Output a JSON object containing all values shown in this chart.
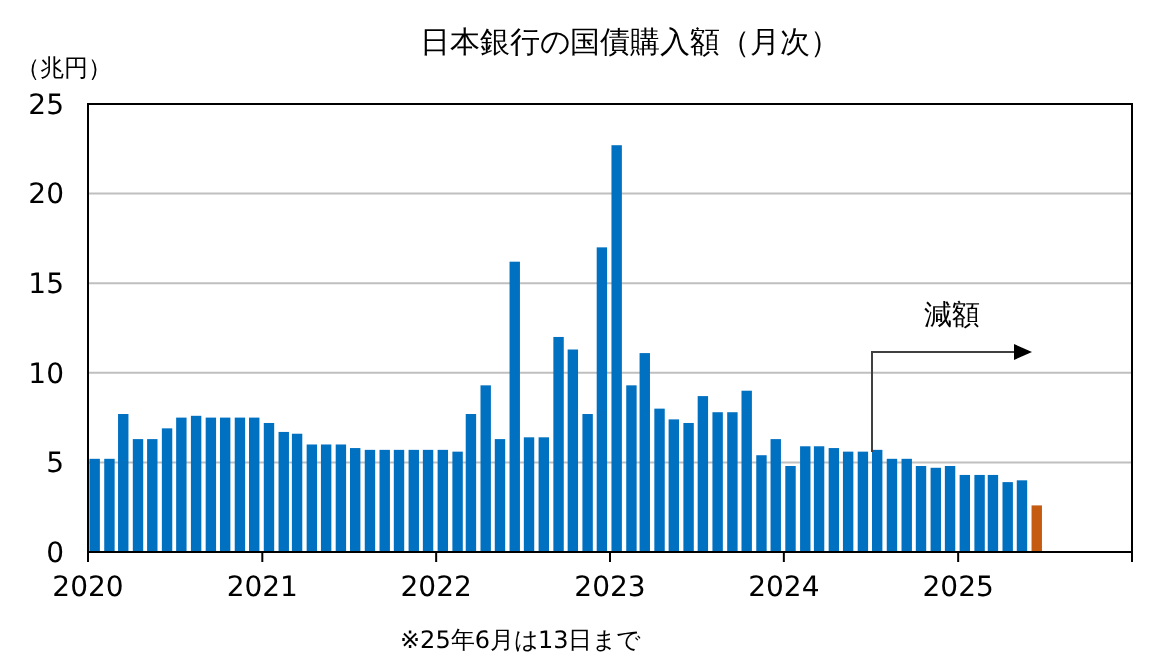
{
  "chart_data": {
    "type": "bar",
    "title": "日本銀行の国債購入額（月次）",
    "ylabel": "（兆円）",
    "x": [
      "2020-01-15",
      "2020-02-15",
      "2020-03-15",
      "2020-04-15",
      "2020-05-15",
      "2020-06-15",
      "2020-07-15",
      "2020-08-15",
      "2020-09-15",
      "2020-10-15",
      "2020-11-15",
      "2020-12-15",
      "2021-01-15",
      "2021-02-15",
      "2021-03-15",
      "2021-04-15",
      "2021-05-15",
      "2021-06-15",
      "2021-07-15",
      "2021-08-15",
      "2021-09-15",
      "2021-10-15",
      "2021-11-15",
      "2021-12-15",
      "2022-01-15",
      "2022-02-15",
      "2022-03-15",
      "2022-04-15",
      "2022-05-15",
      "2022-06-15",
      "2022-07-15",
      "2022-08-15",
      "2022-09-15",
      "2022-10-15",
      "2022-11-15",
      "2022-12-15",
      "2023-01-15",
      "2023-02-15",
      "2023-03-15",
      "2023-04-15",
      "2023-05-15",
      "2023-06-15",
      "2023-07-15",
      "2023-08-15",
      "2023-09-15",
      "2023-10-15",
      "2023-11-15",
      "2023-12-15",
      "2024-01-15",
      "2024-02-15",
      "2024-03-15",
      "2024-04-15",
      "2024-05-15",
      "2024-06-15",
      "2024-07-15",
      "2024-08-15",
      "2024-09-15",
      "2024-10-15",
      "2024-11-15",
      "2024-12-15",
      "2025-01-15",
      "2025-02-15",
      "2025-03-15",
      "2025-04-15",
      "2025-05-15",
      "2025-06-15"
    ],
    "values": [
      5.2,
      5.2,
      7.7,
      6.3,
      6.3,
      6.9,
      7.5,
      7.6,
      7.5,
      7.5,
      7.5,
      7.5,
      7.2,
      6.7,
      6.6,
      6.0,
      6.0,
      6.0,
      5.8,
      5.7,
      5.7,
      5.7,
      5.7,
      5.7,
      5.7,
      5.6,
      7.7,
      9.3,
      6.3,
      16.2,
      6.4,
      6.4,
      12.0,
      11.3,
      7.7,
      17.0,
      22.7,
      9.3,
      11.1,
      8.0,
      7.4,
      7.2,
      8.7,
      7.8,
      7.8,
      9.0,
      5.4,
      6.3,
      4.8,
      5.9,
      5.9,
      5.8,
      5.6,
      5.6,
      5.7,
      5.2,
      5.2,
      4.8,
      4.7,
      4.8,
      4.3,
      4.3,
      4.3,
      3.9,
      4.0,
      2.6
    ],
    "colors": [
      "#0070c0",
      "#0070c0",
      "#0070c0",
      "#0070c0",
      "#0070c0",
      "#0070c0",
      "#0070c0",
      "#0070c0",
      "#0070c0",
      "#0070c0",
      "#0070c0",
      "#0070c0",
      "#0070c0",
      "#0070c0",
      "#0070c0",
      "#0070c0",
      "#0070c0",
      "#0070c0",
      "#0070c0",
      "#0070c0",
      "#0070c0",
      "#0070c0",
      "#0070c0",
      "#0070c0",
      "#0070c0",
      "#0070c0",
      "#0070c0",
      "#0070c0",
      "#0070c0",
      "#0070c0",
      "#0070c0",
      "#0070c0",
      "#0070c0",
      "#0070c0",
      "#0070c0",
      "#0070c0",
      "#0070c0",
      "#0070c0",
      "#0070c0",
      "#0070c0",
      "#0070c0",
      "#0070c0",
      "#0070c0",
      "#0070c0",
      "#0070c0",
      "#0070c0",
      "#0070c0",
      "#0070c0",
      "#0070c0",
      "#0070c0",
      "#0070c0",
      "#0070c0",
      "#0070c0",
      "#0070c0",
      "#0070c0",
      "#0070c0",
      "#0070c0",
      "#0070c0",
      "#0070c0",
      "#0070c0",
      "#0070c0",
      "#0070c0",
      "#0070c0",
      "#0070c0",
      "#0070c0",
      "#c55a11"
    ],
    "xlim": [
      "2020-01-01",
      "2026-01-01"
    ],
    "xticks": [
      {
        "value": "2020-01-01",
        "label": "2020"
      },
      {
        "value": "2021-01-01",
        "label": "2021"
      },
      {
        "value": "2022-01-01",
        "label": "2022"
      },
      {
        "value": "2023-01-01",
        "label": "2023"
      },
      {
        "value": "2024-01-01",
        "label": "2024"
      },
      {
        "value": "2025-01-01",
        "label": "2025"
      },
      {
        "value": "2026-01-01",
        "label": null
      }
    ],
    "ylim": [
      0,
      25
    ],
    "yticks": [
      0,
      5,
      10,
      15,
      20,
      25
    ],
    "grid": "y",
    "annotations": [
      "減額",
      "※25年6月は13日まで"
    ]
  }
}
